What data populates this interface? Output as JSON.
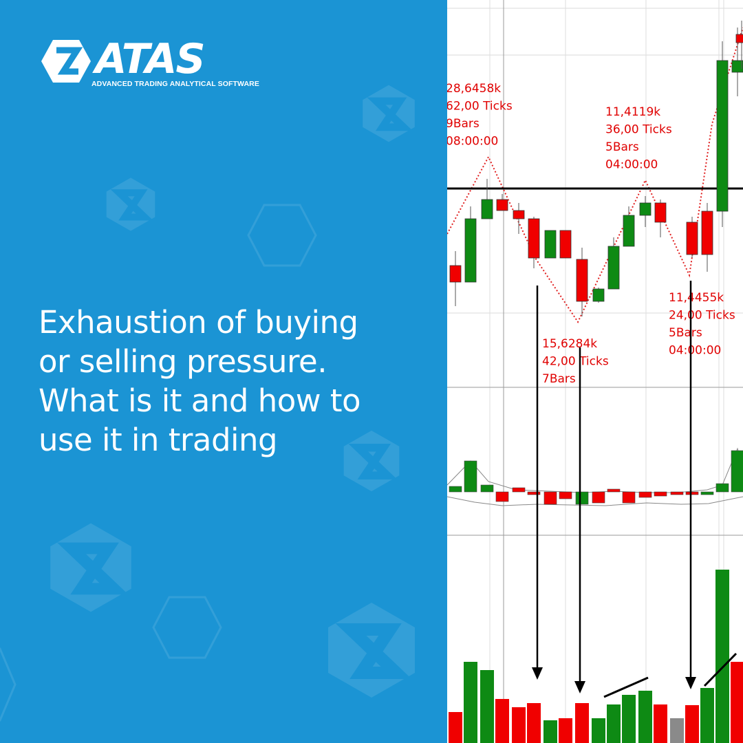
{
  "brand": {
    "name": "ATAS",
    "tagline": "ADVANCED TRADING ANALYTICAL SOFTWARE",
    "logo_icon": "atas-hexagon-logo-icon"
  },
  "headline": {
    "lines": [
      "Exhaustion of buying",
      "or selling pressure.",
      "What is it and how to",
      "use it in trading"
    ]
  },
  "colors": {
    "panel_blue": "#1b94d4",
    "bull": "#0e8a14",
    "bear": "#f00000",
    "neutral": "#8a8a8a",
    "annotation": "#e00000"
  },
  "chart_data": {
    "type": "candlestick",
    "annotations": [
      {
        "lines": [
          "28,6458k",
          "62,00 Ticks",
          "9Bars",
          "08:00:00"
        ]
      },
      {
        "lines": [
          "11,4119k",
          "36,00 Ticks",
          "5Bars",
          "04:00:00"
        ]
      },
      {
        "lines": [
          "11,4455k",
          "24,00 Ticks",
          "5Bars",
          "04:00:00"
        ]
      },
      {
        "lines": [
          "15,6284k",
          "42,00 Ticks",
          "7Bars",
          ""
        ]
      }
    ],
    "candles": [
      {
        "dir": "down"
      },
      {
        "dir": "up"
      },
      {
        "dir": "up"
      },
      {
        "dir": "down"
      },
      {
        "dir": "down"
      },
      {
        "dir": "down"
      },
      {
        "dir": "up"
      },
      {
        "dir": "down"
      },
      {
        "dir": "down"
      },
      {
        "dir": "up"
      },
      {
        "dir": "up"
      },
      {
        "dir": "up"
      },
      {
        "dir": "up"
      },
      {
        "dir": "down"
      },
      {
        "dir": "down"
      },
      {
        "dir": "down"
      },
      {
        "dir": "up"
      },
      {
        "dir": "up"
      },
      {
        "dir": "down"
      }
    ],
    "delta_bars": [
      "up",
      "up",
      "up",
      "down",
      "down",
      "down",
      "down",
      "down",
      "up",
      "down",
      "down",
      "down",
      "down",
      "down",
      "down",
      "down",
      "up",
      "up",
      "up"
    ],
    "volume_bars": [
      "down",
      "up",
      "up",
      "down",
      "down",
      "down",
      "up",
      "down",
      "down",
      "up",
      "up",
      "up",
      "up",
      "down",
      "neutral",
      "down",
      "up",
      "up",
      "down"
    ]
  }
}
